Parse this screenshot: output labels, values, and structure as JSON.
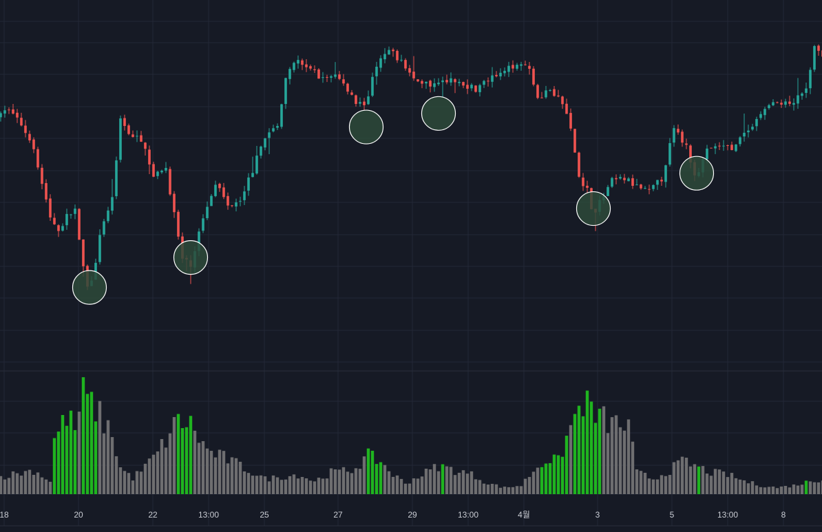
{
  "chart_data": {
    "type": "candlestick_with_volume",
    "colors": {
      "background": "#161a25",
      "grid": "#232837",
      "up": "#26a69a",
      "down": "#ef5350",
      "volume_normal": "#6e6e70",
      "volume_highlight": "#1fb41f",
      "marker_fill": "#2d4a3a",
      "marker_stroke": "#ffffff"
    },
    "x_ticks": [
      "18",
      "20",
      "22",
      "13:00",
      "25",
      "27",
      "29",
      "13:00",
      "4월",
      "3",
      "5",
      "13:00",
      "8"
    ],
    "price_ylim": [
      0,
      100
    ],
    "price_path": [
      {
        "t": 0,
        "p": 75
      },
      {
        "t": 2,
        "p": 78
      },
      {
        "t": 5,
        "p": 72
      },
      {
        "t": 8,
        "p": 64
      },
      {
        "t": 10,
        "p": 50
      },
      {
        "t": 12,
        "p": 38
      },
      {
        "t": 14,
        "p": 33
      },
      {
        "t": 16,
        "p": 38
      },
      {
        "t": 18,
        "p": 41
      },
      {
        "t": 19.6,
        "p": 21
      },
      {
        "t": 21.5,
        "p": 10
      },
      {
        "t": 24,
        "p": 30
      },
      {
        "t": 27,
        "p": 46
      },
      {
        "t": 29,
        "p": 73
      },
      {
        "t": 32,
        "p": 68
      },
      {
        "t": 35,
        "p": 64
      },
      {
        "t": 37,
        "p": 52
      },
      {
        "t": 40,
        "p": 56
      },
      {
        "t": 42,
        "p": 39
      },
      {
        "t": 44,
        "p": 22
      },
      {
        "t": 46,
        "p": 20
      },
      {
        "t": 49,
        "p": 38
      },
      {
        "t": 52,
        "p": 51
      },
      {
        "t": 55,
        "p": 42
      },
      {
        "t": 58,
        "p": 45
      },
      {
        "t": 61,
        "p": 55
      },
      {
        "t": 64,
        "p": 68
      },
      {
        "t": 67,
        "p": 71
      },
      {
        "t": 69,
        "p": 90
      },
      {
        "t": 72,
        "p": 95
      },
      {
        "t": 75,
        "p": 92
      },
      {
        "t": 78,
        "p": 89
      },
      {
        "t": 81,
        "p": 90
      },
      {
        "t": 84,
        "p": 85
      },
      {
        "t": 86,
        "p": 80
      },
      {
        "t": 88.5,
        "p": 80
      },
      {
        "t": 91,
        "p": 94
      },
      {
        "t": 94,
        "p": 99
      },
      {
        "t": 97,
        "p": 95
      },
      {
        "t": 100,
        "p": 89
      },
      {
        "t": 103,
        "p": 87
      },
      {
        "t": 106,
        "p": 87
      },
      {
        "t": 109,
        "p": 89
      },
      {
        "t": 112,
        "p": 87
      },
      {
        "t": 115,
        "p": 85
      },
      {
        "t": 118,
        "p": 88
      },
      {
        "t": 122,
        "p": 91
      },
      {
        "t": 125,
        "p": 95
      },
      {
        "t": 128,
        "p": 93
      },
      {
        "t": 130,
        "p": 82
      },
      {
        "t": 133,
        "p": 85
      },
      {
        "t": 136,
        "p": 80
      },
      {
        "t": 138,
        "p": 70
      },
      {
        "t": 140,
        "p": 53
      },
      {
        "t": 142,
        "p": 48
      },
      {
        "t": 143.5,
        "p": 39
      },
      {
        "t": 145,
        "p": 43
      },
      {
        "t": 148,
        "p": 51
      },
      {
        "t": 151,
        "p": 52
      },
      {
        "t": 154,
        "p": 49
      },
      {
        "t": 157,
        "p": 47
      },
      {
        "t": 160,
        "p": 52
      },
      {
        "t": 163,
        "p": 70
      },
      {
        "t": 166,
        "p": 64
      },
      {
        "t": 168.5,
        "p": 52
      },
      {
        "t": 171,
        "p": 62
      },
      {
        "t": 174,
        "p": 64
      },
      {
        "t": 177,
        "p": 63
      },
      {
        "t": 180,
        "p": 68
      },
      {
        "t": 183,
        "p": 73
      },
      {
        "t": 186,
        "p": 80
      },
      {
        "t": 189,
        "p": 79
      },
      {
        "t": 192,
        "p": 80
      },
      {
        "t": 195,
        "p": 85
      },
      {
        "t": 197,
        "p": 100
      },
      {
        "t": 199,
        "p": 96
      }
    ],
    "volume_ylim": [
      0,
      100
    ],
    "volume_path": [
      {
        "t": 0,
        "v": 16
      },
      {
        "t": 8,
        "v": 22
      },
      {
        "t": 12,
        "v": 12
      },
      {
        "t": 13,
        "v": 50
      },
      {
        "t": 16,
        "v": 72
      },
      {
        "t": 18,
        "v": 60
      },
      {
        "t": 20,
        "v": 92
      },
      {
        "t": 23,
        "v": 78
      },
      {
        "t": 27,
        "v": 55
      },
      {
        "t": 29,
        "v": 24
      },
      {
        "t": 32,
        "v": 15
      },
      {
        "t": 35,
        "v": 25
      },
      {
        "t": 38,
        "v": 38
      },
      {
        "t": 43,
        "v": 68
      },
      {
        "t": 46,
        "v": 64
      },
      {
        "t": 50,
        "v": 40
      },
      {
        "t": 55,
        "v": 32
      },
      {
        "t": 60,
        "v": 22
      },
      {
        "t": 64,
        "v": 14
      },
      {
        "t": 68,
        "v": 16
      },
      {
        "t": 72,
        "v": 18
      },
      {
        "t": 76,
        "v": 12
      },
      {
        "t": 80,
        "v": 20
      },
      {
        "t": 85,
        "v": 22
      },
      {
        "t": 89,
        "v": 35
      },
      {
        "t": 92,
        "v": 30
      },
      {
        "t": 95,
        "v": 18
      },
      {
        "t": 98,
        "v": 10
      },
      {
        "t": 102,
        "v": 18
      },
      {
        "t": 106,
        "v": 26
      },
      {
        "t": 110,
        "v": 22
      },
      {
        "t": 114,
        "v": 18
      },
      {
        "t": 118,
        "v": 10
      },
      {
        "t": 122,
        "v": 6
      },
      {
        "t": 126,
        "v": 8
      },
      {
        "t": 129,
        "v": 22
      },
      {
        "t": 132,
        "v": 32
      },
      {
        "t": 135,
        "v": 30
      },
      {
        "t": 138,
        "v": 62
      },
      {
        "t": 141,
        "v": 86
      },
      {
        "t": 144,
        "v": 72
      },
      {
        "t": 148,
        "v": 65
      },
      {
        "t": 152,
        "v": 62
      },
      {
        "t": 154,
        "v": 20
      },
      {
        "t": 158,
        "v": 14
      },
      {
        "t": 162,
        "v": 22
      },
      {
        "t": 165,
        "v": 30
      },
      {
        "t": 168,
        "v": 26
      },
      {
        "t": 172,
        "v": 20
      },
      {
        "t": 176,
        "v": 18
      },
      {
        "t": 180,
        "v": 12
      },
      {
        "t": 184,
        "v": 8
      },
      {
        "t": 188,
        "v": 6
      },
      {
        "t": 192,
        "v": 8
      },
      {
        "t": 196,
        "v": 12
      },
      {
        "t": 199,
        "v": 14
      }
    ],
    "volume_highlight_ranges": [
      [
        13,
        18
      ],
      [
        20,
        23
      ],
      [
        43,
        46
      ],
      [
        89,
        92
      ],
      [
        107,
        107
      ],
      [
        131,
        137
      ],
      [
        139,
        145
      ],
      [
        169,
        169
      ],
      [
        195,
        195
      ]
    ],
    "circle_markers": [
      {
        "t": 21.5,
        "p": 12
      },
      {
        "t": 46,
        "p": 23
      },
      {
        "t": 88.5,
        "p": 71
      },
      {
        "t": 106,
        "p": 76
      },
      {
        "t": 143.5,
        "p": 41
      },
      {
        "t": 168.5,
        "p": 54
      }
    ]
  }
}
